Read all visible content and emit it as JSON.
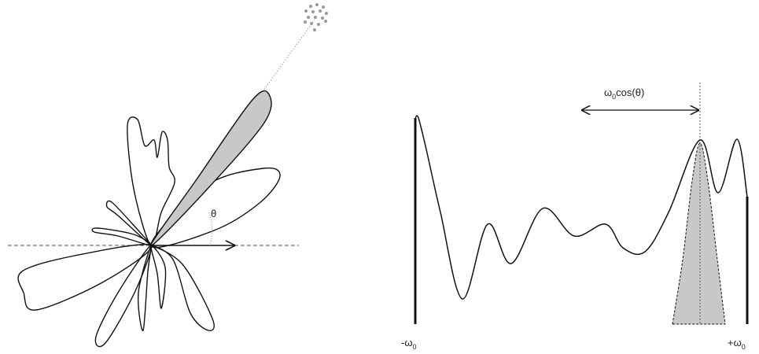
{
  "left_panel": {
    "angle_label": "θ"
  },
  "right_panel": {
    "shift_label": {
      "symbol": "ω",
      "sub": "0",
      "rest": "cos(θ)"
    },
    "axis_min": {
      "symbol": "-ω",
      "sub": "0"
    },
    "axis_max": {
      "symbol": "+ω",
      "sub": "0"
    }
  }
}
